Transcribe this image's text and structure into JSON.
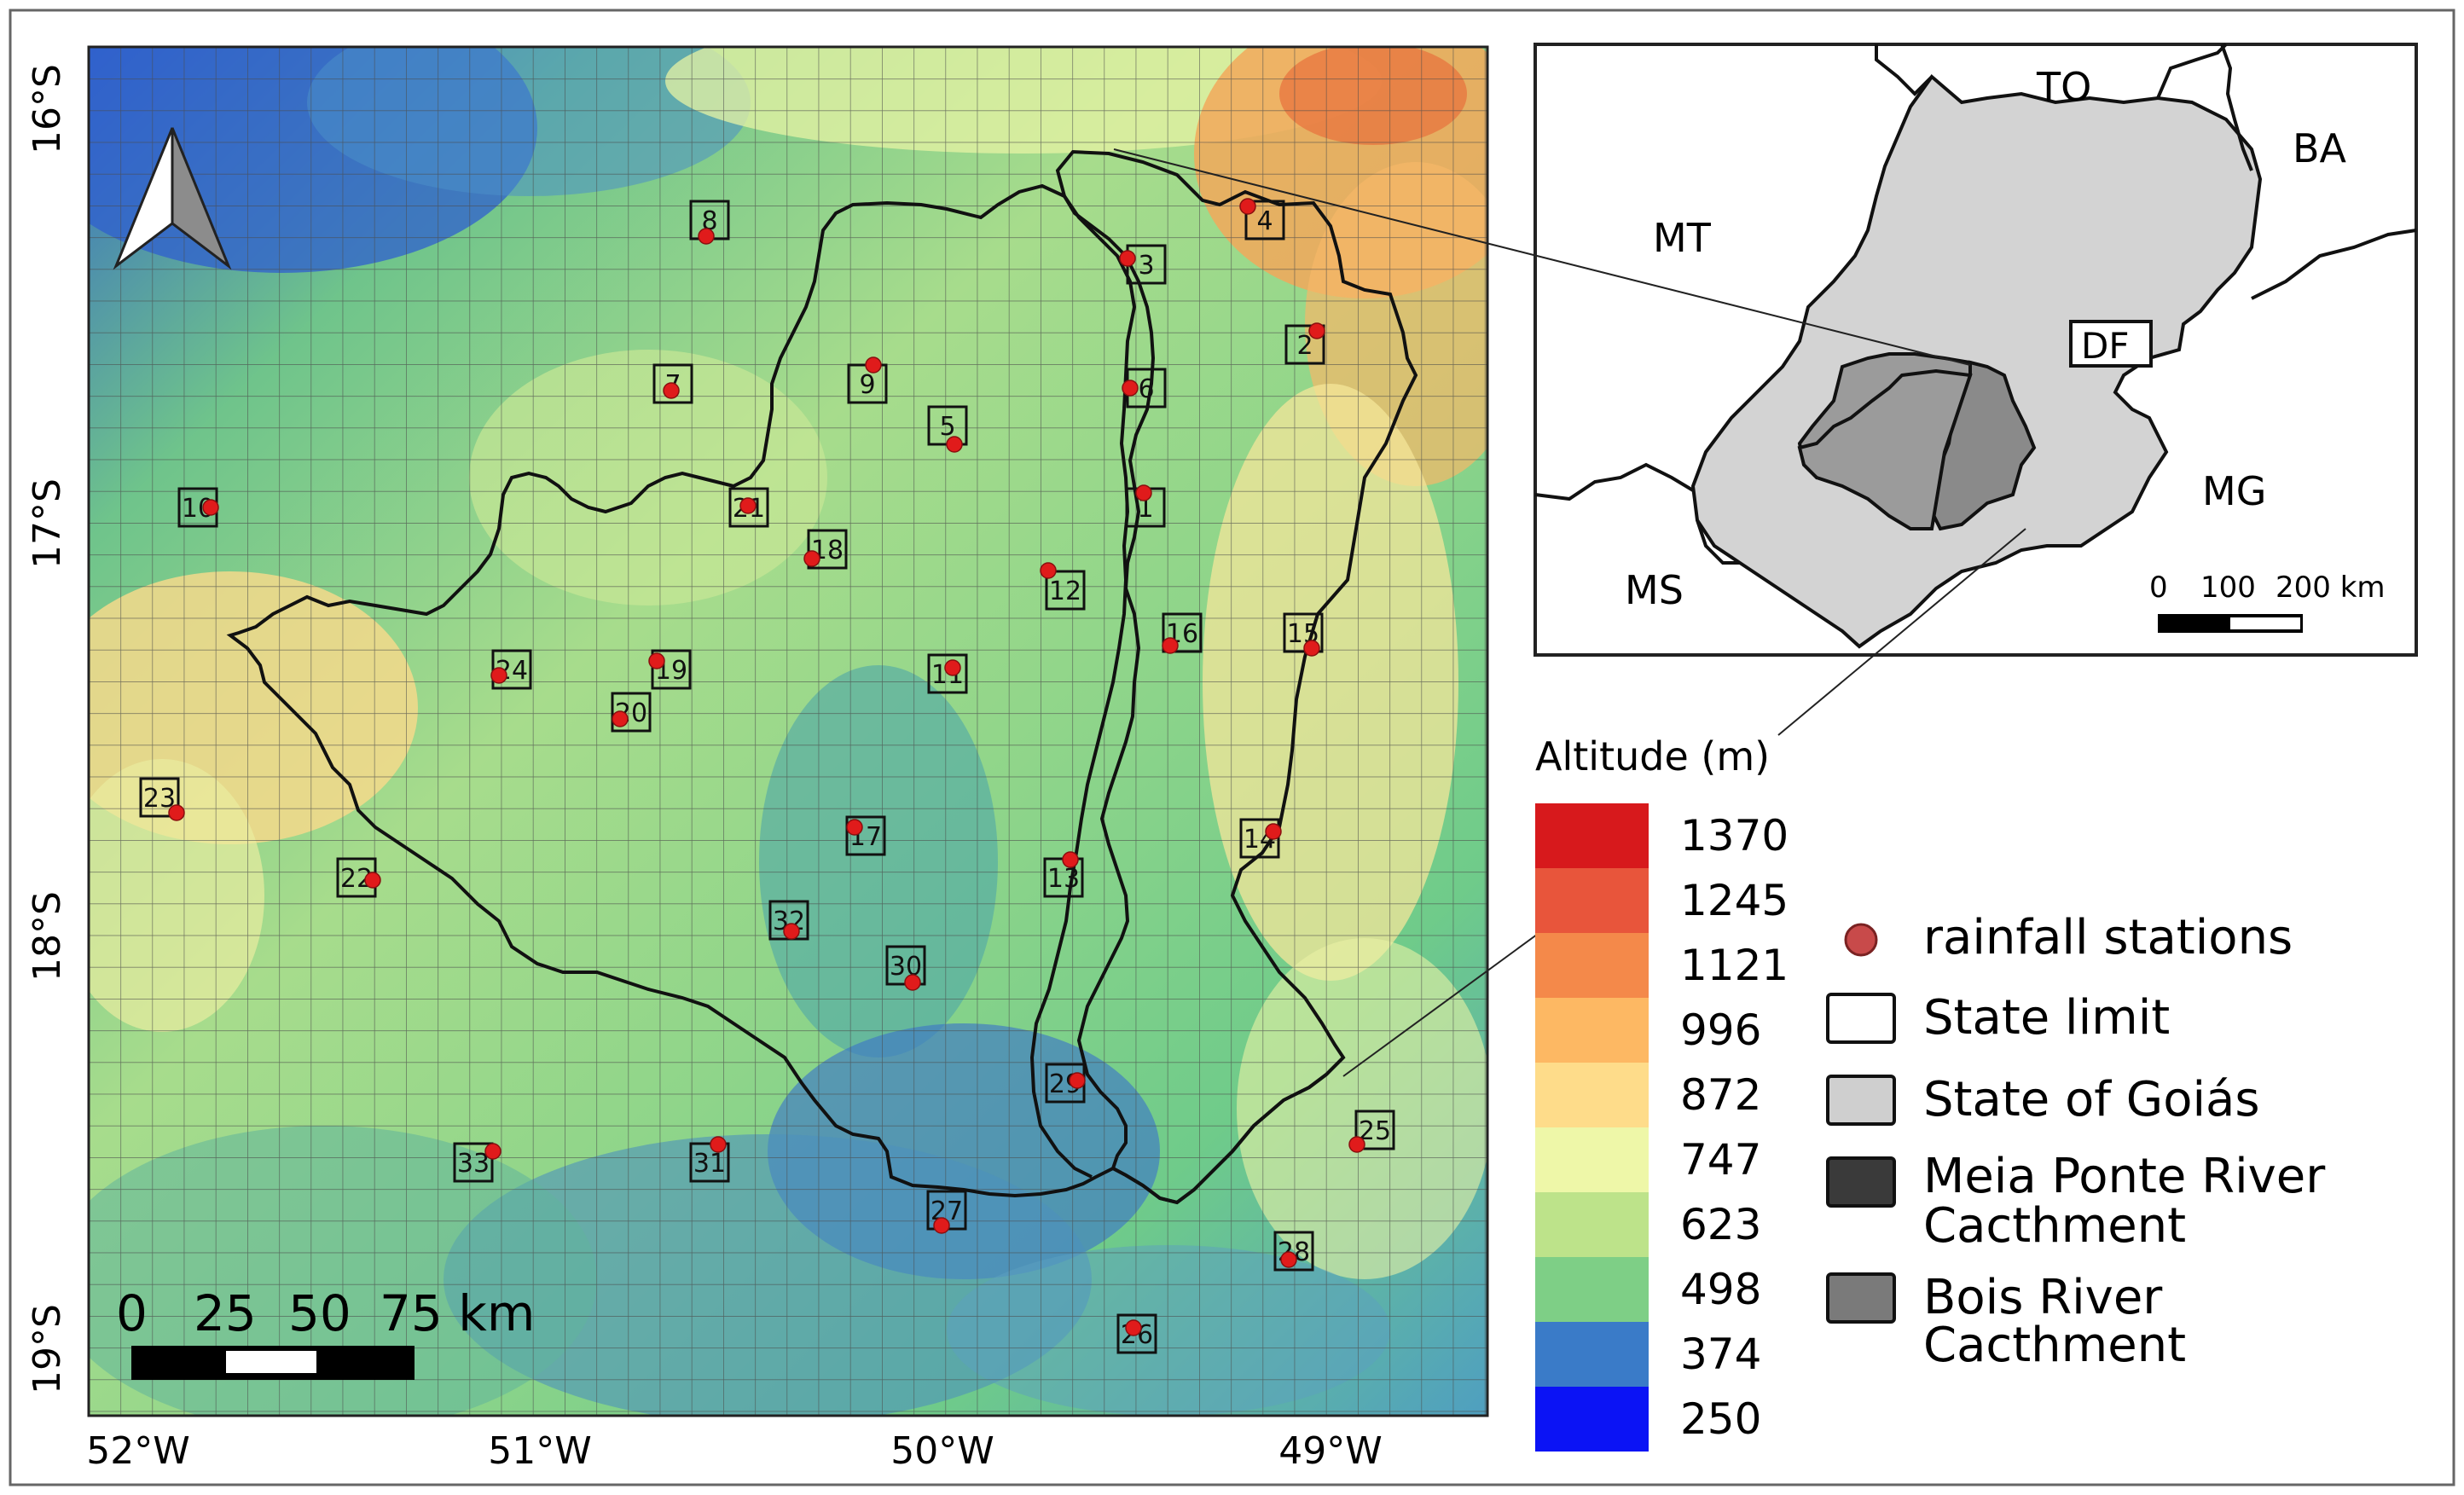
{
  "map": {
    "lat_labels": [
      "16°S",
      "17°S",
      "18°S",
      "19°S"
    ],
    "lon_labels": [
      "52°W",
      "51°W",
      "50°W",
      "49°W"
    ],
    "scale_bar": {
      "labels": [
        "0",
        "25",
        "50",
        "75 km"
      ]
    },
    "stations": [
      {
        "id": "1"
      },
      {
        "id": "2"
      },
      {
        "id": "3"
      },
      {
        "id": "4"
      },
      {
        "id": "5"
      },
      {
        "id": "6"
      },
      {
        "id": "7"
      },
      {
        "id": "8"
      },
      {
        "id": "9"
      },
      {
        "id": "10"
      },
      {
        "id": "11"
      },
      {
        "id": "12"
      },
      {
        "id": "13"
      },
      {
        "id": "14"
      },
      {
        "id": "15"
      },
      {
        "id": "16"
      },
      {
        "id": "17"
      },
      {
        "id": "18"
      },
      {
        "id": "19"
      },
      {
        "id": "20"
      },
      {
        "id": "21"
      },
      {
        "id": "22"
      },
      {
        "id": "23"
      },
      {
        "id": "24"
      },
      {
        "id": "25"
      },
      {
        "id": "26"
      },
      {
        "id": "27"
      },
      {
        "id": "28"
      },
      {
        "id": "29"
      },
      {
        "id": "30"
      },
      {
        "id": "31"
      },
      {
        "id": "32"
      },
      {
        "id": "33"
      }
    ]
  },
  "inset": {
    "labels": {
      "TO": "TO",
      "BA": "BA",
      "MT": "MT",
      "DF": "DF",
      "MG": "MG",
      "MS": "MS"
    },
    "scale_labels": [
      "0",
      "100",
      "200 km"
    ]
  },
  "legend": {
    "title": "Altitude (m)",
    "ramp": [
      {
        "value": "1370",
        "color": "#d7191c"
      },
      {
        "value": "1245",
        "color": "#e8553b"
      },
      {
        "value": "1121",
        "color": "#f4894a"
      },
      {
        "value": "996",
        "color": "#fdb863"
      },
      {
        "value": "872",
        "color": "#fedc8a"
      },
      {
        "value": "747",
        "color": "#eef7a8"
      },
      {
        "value": "623",
        "color": "#bde38a"
      },
      {
        "value": "498",
        "color": "#7ecf86"
      },
      {
        "value": "374",
        "color": "#3a7bc8"
      },
      {
        "value": "250",
        "color": "#0b13f5"
      }
    ],
    "items": [
      {
        "label": "rainfall stations"
      },
      {
        "label": "State limit"
      },
      {
        "label": "State of Goiás"
      },
      {
        "label_line1": "Meia Ponte River",
        "label_line2": "Cacthment"
      },
      {
        "label_line1": "Bois River",
        "label_line2": "Cacthment"
      }
    ]
  }
}
